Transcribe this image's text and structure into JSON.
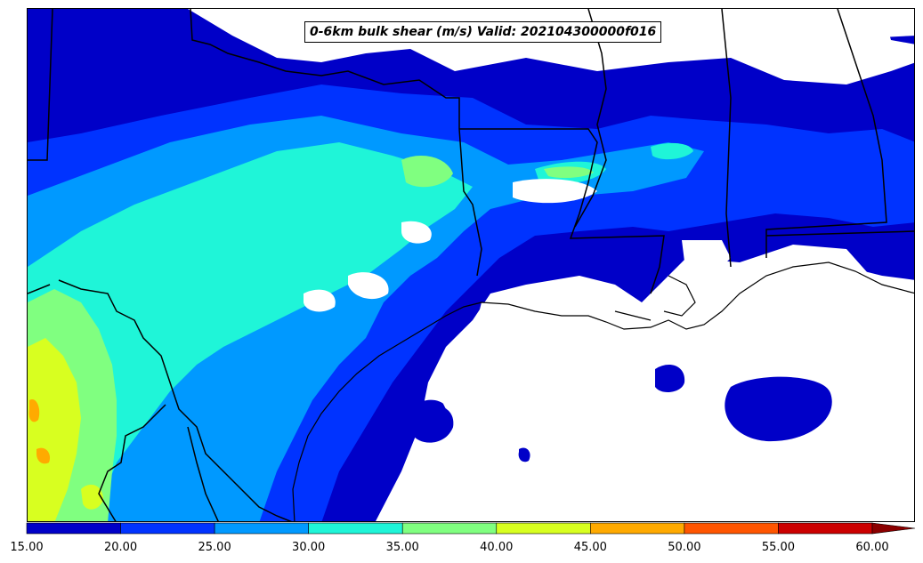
{
  "title": "0-6km bulk shear (m/s) Valid: 202104300000f016",
  "colorbar": {
    "ticks": [
      "15.00",
      "20.00",
      "25.00",
      "30.00",
      "35.00",
      "40.00",
      "45.00",
      "50.00",
      "55.00",
      "60.00"
    ],
    "colors": [
      "#0000c8",
      "#0033ff",
      "#0099ff",
      "#1ff5d8",
      "#80ff80",
      "#d8ff20",
      "#ffaa00",
      "#ff5500",
      "#cc0000"
    ],
    "extend_color": "#8b0000"
  },
  "map": {
    "field": "0-6km bulk shear",
    "units": "m/s",
    "levels": [
      15,
      20,
      25,
      30,
      35,
      40,
      45,
      50,
      55,
      60
    ],
    "coastline_color": "#000000",
    "background": "#ffffff"
  }
}
